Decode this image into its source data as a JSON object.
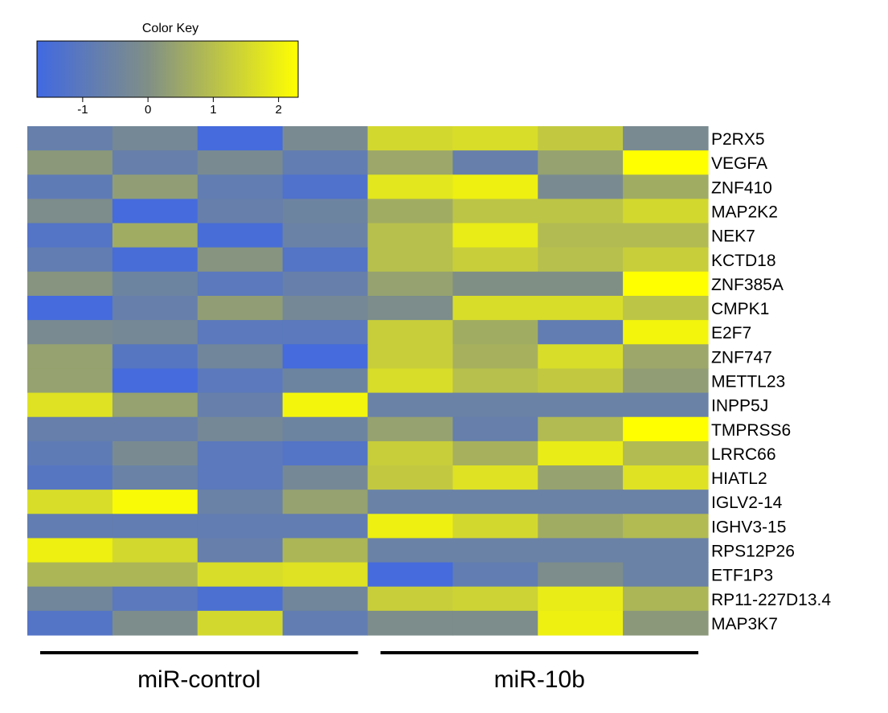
{
  "chart_data": {
    "type": "heatmap",
    "title": "",
    "color_key": {
      "title": "Color Key",
      "range": [
        -1.7,
        2.3
      ],
      "ticks": [
        -1,
        0,
        1,
        2
      ],
      "tick_labels": [
        "-1",
        "0",
        "1",
        "2"
      ],
      "colors": [
        "#4169e1",
        "#808f86",
        "#ffff00"
      ]
    },
    "rows": [
      "P2RX5",
      "VEGFA",
      "ZNF410",
      "MAP2K2",
      "NEK7",
      "KCTD18",
      "ZNF385A",
      "CMPK1",
      "E2F7",
      "ZNF747",
      "METTL23",
      "INPP5J",
      "TMPRSS6",
      "LRRC66",
      "HIATL2",
      "IGLV2-14",
      "IGHV3-15",
      "RPS12P26",
      "ETF1P3",
      "RP11-227D13.4",
      "MAP3K7"
    ],
    "groups": [
      {
        "name": "miR-control",
        "columns": 4
      },
      {
        "name": "miR-10b",
        "columns": 4
      }
    ],
    "values": [
      [
        -0.7,
        -0.3,
        -1.6,
        -0.2,
        1.5,
        1.6,
        1.2,
        -0.2
      ],
      [
        0.2,
        -0.7,
        -0.2,
        -0.8,
        0.5,
        -0.7,
        0.4,
        2.3
      ],
      [
        -0.9,
        0.3,
        -0.8,
        -1.3,
        1.8,
        2.0,
        -0.2,
        0.6
      ],
      [
        -0.1,
        -1.6,
        -0.7,
        -0.5,
        0.6,
        1.1,
        1.1,
        1.5
      ],
      [
        -1.2,
        0.6,
        -1.5,
        -0.6,
        1.0,
        1.9,
        0.9,
        0.9
      ],
      [
        -0.8,
        -1.5,
        0.1,
        -1.2,
        1.0,
        1.3,
        1.0,
        1.3
      ],
      [
        0.1,
        -0.5,
        -1.0,
        -0.7,
        0.4,
        0.0,
        0.0,
        2.3
      ],
      [
        -1.6,
        -0.7,
        0.3,
        -0.3,
        -0.1,
        1.6,
        1.6,
        1.1
      ],
      [
        -0.2,
        -0.3,
        -1.0,
        -1.0,
        1.3,
        0.6,
        -0.8,
        2.1
      ],
      [
        0.4,
        -1.1,
        -0.4,
        -1.6,
        1.3,
        0.7,
        1.6,
        0.5
      ],
      [
        0.4,
        -1.6,
        -1.0,
        -0.5,
        1.6,
        1.0,
        1.2,
        0.3
      ],
      [
        1.7,
        0.4,
        -0.7,
        2.1,
        -0.6,
        -0.6,
        -0.6,
        -0.6
      ],
      [
        -0.7,
        -0.7,
        -0.3,
        -0.5,
        0.4,
        -0.7,
        0.9,
        2.3
      ],
      [
        -0.9,
        -0.2,
        -1.0,
        -1.2,
        1.3,
        0.7,
        1.9,
        0.9
      ],
      [
        -1.1,
        -0.6,
        -1.0,
        -0.3,
        1.2,
        1.7,
        0.4,
        1.7
      ],
      [
        1.6,
        2.2,
        -0.6,
        0.4,
        -0.6,
        -0.6,
        -0.6,
        -0.6
      ],
      [
        -0.8,
        -0.8,
        -0.8,
        -0.8,
        2.0,
        1.5,
        0.6,
        0.9
      ],
      [
        2.0,
        1.5,
        -0.7,
        0.8,
        -0.6,
        -0.6,
        -0.6,
        -0.6
      ],
      [
        0.8,
        0.8,
        1.6,
        1.7,
        -1.6,
        -0.8,
        -0.1,
        -0.6
      ],
      [
        -0.4,
        -1.0,
        -1.4,
        -0.4,
        1.3,
        1.4,
        1.9,
        0.8
      ],
      [
        -1.2,
        -0.1,
        1.5,
        -0.8,
        -0.1,
        -0.1,
        2.0,
        0.2
      ]
    ]
  }
}
